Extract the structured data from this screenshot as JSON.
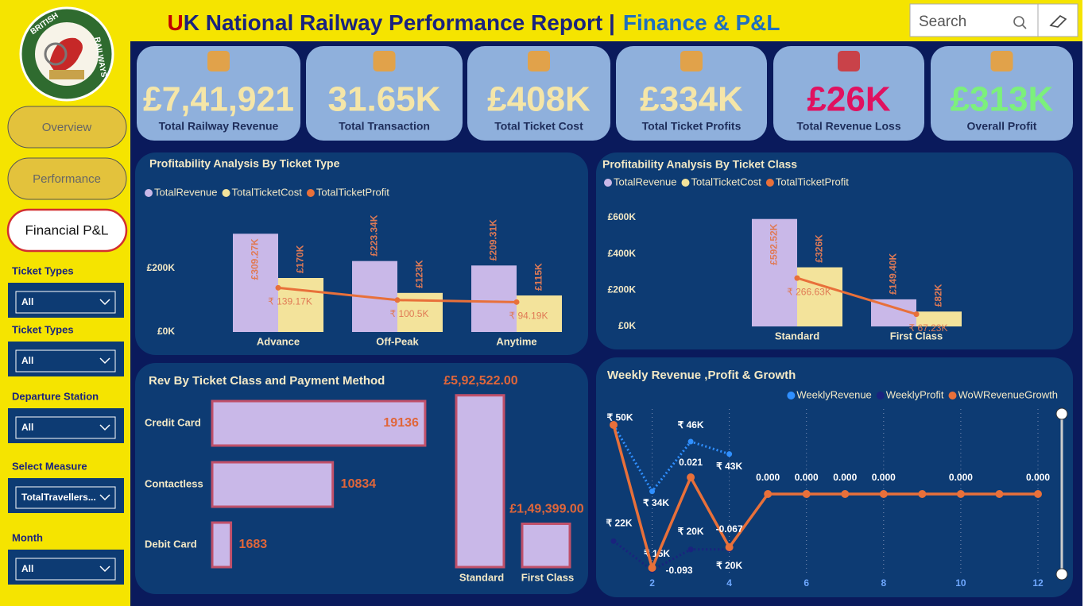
{
  "header": {
    "title_initial": "U",
    "title_rest": "K National Railway Performance Report |",
    "subtitle": "Finance & P&L",
    "search_placeholder": "Search"
  },
  "logo": {
    "top_text": "BRITISH",
    "bottom_text": "RAILWAYS"
  },
  "nav": [
    "Overview",
    "Performance",
    "Financial P&L"
  ],
  "filters": [
    {
      "label": "Ticket Types",
      "value": "All"
    },
    {
      "label": "Ticket Types",
      "value": "All"
    },
    {
      "label": "Departure Station",
      "value": "All"
    },
    {
      "label": "Select Measure",
      "value": "TotalTravellers..."
    },
    {
      "label": "Month",
      "value": "All"
    }
  ],
  "kpis": [
    {
      "value": "£7,41,921",
      "label": "Total Railway Revenue",
      "color": "#f5e6a8"
    },
    {
      "value": "31.65K",
      "label": "Total Transaction",
      "color": "#f5e6a8"
    },
    {
      "value": "£408K",
      "label": "Total Ticket Cost",
      "color": "#f5e6a8"
    },
    {
      "value": "£334K",
      "label": "Total Ticket Profits",
      "color": "#f5e6a8"
    },
    {
      "value": "£26K",
      "label": "Total Revenue Loss",
      "color": "#e0115f"
    },
    {
      "value": "£313K",
      "label": "Overall Profit",
      "color": "#7cf07c"
    }
  ],
  "chart_data": [
    {
      "type": "bar",
      "title": "Profitability Analysis By Ticket Type",
      "categories": [
        "Advance",
        "Off-Peak",
        "Anytime"
      ],
      "series": [
        {
          "name": "TotalRevenue",
          "color": "#c9b8e8",
          "values": [
            309270,
            223340,
            209310
          ],
          "value_labels": [
            "£309.27K",
            "£223.34K",
            "£209.31K"
          ]
        },
        {
          "name": "TotalTicketCost",
          "color": "#f3e39b",
          "values": [
            170000,
            123000,
            115000
          ],
          "value_labels": [
            "£170K",
            "£123K",
            "£115K"
          ]
        },
        {
          "name": "TotalTicketProfit",
          "color": "#e8703a",
          "type": "line",
          "values": [
            139170,
            100500,
            94190
          ],
          "value_labels": [
            "₹ 139.17K",
            "₹ 100.5K",
            "₹ 94.19K"
          ]
        }
      ],
      "ylim": [
        0,
        400000
      ],
      "yticks": [
        {
          "value": 0,
          "label": "£0K"
        },
        {
          "value": 200000,
          "label": "£200K"
        }
      ]
    },
    {
      "type": "bar",
      "title": "Profitability Analysis By Ticket Class",
      "categories": [
        "Standard",
        "First Class"
      ],
      "series": [
        {
          "name": "TotalRevenue",
          "color": "#c9b8e8",
          "values": [
            592520,
            149400
          ],
          "value_labels": [
            "£592.52K",
            "£149.40K"
          ]
        },
        {
          "name": "TotalTicketCost",
          "color": "#f3e39b",
          "values": [
            326000,
            82000
          ],
          "value_labels": [
            "£326K",
            "£82K"
          ]
        },
        {
          "name": "TotalTicketProfit",
          "color": "#e8703a",
          "type": "line",
          "values": [
            266630,
            67230
          ],
          "value_labels": [
            "₹ 266.63K",
            "₹ 67.23K"
          ]
        }
      ],
      "ylim": [
        0,
        600000
      ],
      "yticks": [
        {
          "value": 0,
          "label": "£0K"
        },
        {
          "value": 200000,
          "label": "£200K"
        },
        {
          "value": 400000,
          "label": "£400K"
        },
        {
          "value": 600000,
          "label": "£600K"
        }
      ]
    },
    {
      "type": "hbar",
      "title": "Rev By Ticket Class and Payment Method",
      "categories": [
        "Credit Card",
        "Contactless",
        "Debit Card"
      ],
      "values": [
        19136,
        10834,
        1683
      ],
      "color": "#c9b8e8",
      "xlim": [
        0,
        19500
      ]
    },
    {
      "type": "bar",
      "categories": [
        "Standard",
        "First Class"
      ],
      "values": [
        592522,
        149399
      ],
      "value_labels": [
        "£5,92,522.00",
        "£1,49,399.00"
      ],
      "color": "#c9b8e8",
      "ylim": [
        0,
        600000
      ]
    },
    {
      "type": "line",
      "title": "Weekly Revenue ,Profit & Growth",
      "x": [
        1,
        2,
        3,
        4,
        5,
        6,
        7,
        8,
        9,
        10,
        11,
        12
      ],
      "xlim": [
        1,
        12
      ],
      "xticks": [
        2,
        4,
        6,
        8,
        10,
        12
      ],
      "ylim": [
        10000,
        55000
      ],
      "y2lim": [
        -0.122,
        0.113
      ],
      "series": [
        {
          "name": "WeeklyRevenue",
          "color": "#2f8fff",
          "values": [
            50000,
            34000,
            46000,
            43000,
            null,
            null,
            null,
            null,
            null,
            null,
            null,
            null
          ],
          "value_labels": [
            "₹ 50K",
            "₹ 34K",
            "₹ 46K",
            "₹ 43K",
            null,
            null,
            null,
            null,
            null,
            null,
            null,
            null
          ]
        },
        {
          "name": "WeeklyProfit",
          "color": "#1a237e",
          "values": [
            22000,
            15000,
            20000,
            20000,
            null,
            null,
            null,
            null,
            null,
            null,
            null,
            null
          ],
          "value_labels": [
            "₹ 22K",
            "₹ 15K",
            "₹ 20K",
            "₹ 20K",
            null,
            null,
            null,
            null,
            null,
            null,
            null,
            null
          ]
        },
        {
          "name": "WoWRevenueGrowth",
          "color": "#e8703a",
          "axis": "y2",
          "values": [
            0.087,
            -0.093,
            0.021,
            -0.067,
            0,
            0,
            0,
            0,
            0,
            0,
            0,
            0
          ],
          "value_labels": [
            null,
            "-0.093",
            "0.021",
            "-0.067",
            "0.000",
            "0.000",
            "0.000",
            "0.000",
            null,
            "0.000",
            null,
            "0.000"
          ]
        }
      ]
    }
  ]
}
